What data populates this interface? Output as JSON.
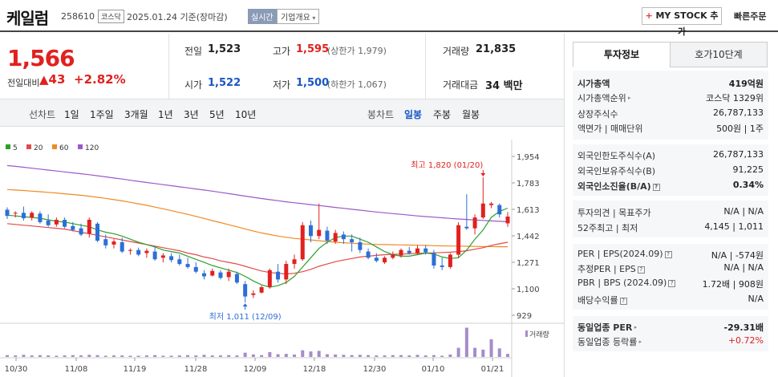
{
  "header": {
    "name": "케일럼",
    "code": "258610",
    "market": "코스닥",
    "date": "2025.01.24",
    "date_suffix": "기준(장마감)",
    "realtime": "실시간",
    "company_overview": "기업개요",
    "mystock": "MY STOCK 추가",
    "quick_order": "빠른주문"
  },
  "price": {
    "current": "1,566",
    "prev_label": "전일대비",
    "change": "▲43",
    "change_pct": "+2.82%"
  },
  "quote": {
    "prev_close_label": "전일",
    "prev_close": "1,523",
    "open_label": "시가",
    "open": "1,522",
    "high_label": "고가",
    "high": "1,595",
    "upper_limit": "(상한가 1,979)",
    "low_label": "저가",
    "low": "1,500",
    "lower_limit": "(하한가 1,067)",
    "volume_label": "거래량",
    "volume": "21,835",
    "amount_label": "거래대금",
    "amount": "34 백만"
  },
  "period_tabs": {
    "line_label": "선차트",
    "line_items": [
      "1일",
      "1주일",
      "3개월",
      "1년",
      "3년",
      "5년",
      "10년"
    ],
    "candle_label": "봉차트",
    "candle_items": [
      "일봉",
      "주봉",
      "월봉"
    ],
    "active_candle": "일봉"
  },
  "chart_data": {
    "type": "candlestick",
    "x_tick_labels": [
      "10/30",
      "11/08",
      "11/19",
      "11/28",
      "12/09",
      "12/18",
      "12/30",
      "01/10",
      "01/21"
    ],
    "y_tick_labels": [
      "1,954",
      "1,783",
      "1,613",
      "1,442",
      "1,271",
      "1,100",
      "929"
    ],
    "ylim": [
      929,
      1954
    ],
    "legend": [
      {
        "name": "5",
        "color": "#2ca02c"
      },
      {
        "name": "20",
        "color": "#e04b4b"
      },
      {
        "name": "60",
        "color": "#f08a24"
      },
      {
        "name": "120",
        "color": "#9b59c9"
      }
    ],
    "annotations": {
      "high": "최고 1,820 (01/20)",
      "low": "최저 1,011 (12/09)"
    },
    "volume_label": "거래량",
    "candles": [
      {
        "o": 1610,
        "h": 1625,
        "l": 1550,
        "c": 1570
      },
      {
        "o": 1585,
        "h": 1600,
        "l": 1560,
        "c": 1590
      },
      {
        "o": 1590,
        "h": 1630,
        "l": 1540,
        "c": 1555
      },
      {
        "o": 1560,
        "h": 1600,
        "l": 1540,
        "c": 1590
      },
      {
        "o": 1585,
        "h": 1600,
        "l": 1520,
        "c": 1530
      },
      {
        "o": 1540,
        "h": 1580,
        "l": 1500,
        "c": 1510
      },
      {
        "o": 1515,
        "h": 1560,
        "l": 1500,
        "c": 1545
      },
      {
        "o": 1545,
        "h": 1560,
        "l": 1490,
        "c": 1500
      },
      {
        "o": 1505,
        "h": 1530,
        "l": 1470,
        "c": 1480
      },
      {
        "o": 1490,
        "h": 1520,
        "l": 1440,
        "c": 1450
      },
      {
        "o": 1455,
        "h": 1560,
        "l": 1430,
        "c": 1545
      },
      {
        "o": 1520,
        "h": 1530,
        "l": 1400,
        "c": 1410
      },
      {
        "o": 1420,
        "h": 1450,
        "l": 1360,
        "c": 1380
      },
      {
        "o": 1385,
        "h": 1420,
        "l": 1360,
        "c": 1405
      },
      {
        "o": 1400,
        "h": 1430,
        "l": 1330,
        "c": 1340
      },
      {
        "o": 1345,
        "h": 1360,
        "l": 1320,
        "c": 1350
      },
      {
        "o": 1350,
        "h": 1365,
        "l": 1310,
        "c": 1320
      },
      {
        "o": 1330,
        "h": 1360,
        "l": 1300,
        "c": 1345
      },
      {
        "o": 1340,
        "h": 1370,
        "l": 1280,
        "c": 1290
      },
      {
        "o": 1300,
        "h": 1330,
        "l": 1270,
        "c": 1315
      },
      {
        "o": 1310,
        "h": 1330,
        "l": 1270,
        "c": 1285
      },
      {
        "o": 1290,
        "h": 1320,
        "l": 1250,
        "c": 1260
      },
      {
        "o": 1260,
        "h": 1300,
        "l": 1230,
        "c": 1240
      },
      {
        "o": 1240,
        "h": 1270,
        "l": 1200,
        "c": 1210
      },
      {
        "o": 1200,
        "h": 1220,
        "l": 1160,
        "c": 1180
      },
      {
        "o": 1185,
        "h": 1230,
        "l": 1180,
        "c": 1215
      },
      {
        "o": 1205,
        "h": 1220,
        "l": 1160,
        "c": 1170
      },
      {
        "o": 1175,
        "h": 1230,
        "l": 1150,
        "c": 1210
      },
      {
        "o": 1195,
        "h": 1210,
        "l": 1130,
        "c": 1140
      },
      {
        "o": 1130,
        "h": 1150,
        "l": 1011,
        "c": 1050
      },
      {
        "o": 1060,
        "h": 1090,
        "l": 1040,
        "c": 1070
      },
      {
        "o": 1075,
        "h": 1120,
        "l": 1070,
        "c": 1110
      },
      {
        "o": 1110,
        "h": 1230,
        "l": 1100,
        "c": 1220
      },
      {
        "o": 1210,
        "h": 1260,
        "l": 1140,
        "c": 1160
      },
      {
        "o": 1160,
        "h": 1280,
        "l": 1130,
        "c": 1260
      },
      {
        "o": 1260,
        "h": 1320,
        "l": 1230,
        "c": 1290
      },
      {
        "o": 1290,
        "h": 1530,
        "l": 1280,
        "c": 1510
      },
      {
        "o": 1510,
        "h": 1540,
        "l": 1400,
        "c": 1440
      },
      {
        "o": 1440,
        "h": 1650,
        "l": 1420,
        "c": 1480
      },
      {
        "o": 1475,
        "h": 1500,
        "l": 1390,
        "c": 1410
      },
      {
        "o": 1405,
        "h": 1480,
        "l": 1390,
        "c": 1460
      },
      {
        "o": 1450,
        "h": 1470,
        "l": 1390,
        "c": 1420
      },
      {
        "o": 1420,
        "h": 1450,
        "l": 1340,
        "c": 1400
      },
      {
        "o": 1400,
        "h": 1430,
        "l": 1330,
        "c": 1350
      },
      {
        "o": 1340,
        "h": 1360,
        "l": 1290,
        "c": 1300
      },
      {
        "o": 1300,
        "h": 1330,
        "l": 1270,
        "c": 1280
      },
      {
        "o": 1270,
        "h": 1310,
        "l": 1260,
        "c": 1300
      },
      {
        "o": 1300,
        "h": 1340,
        "l": 1290,
        "c": 1320
      },
      {
        "o": 1315,
        "h": 1360,
        "l": 1300,
        "c": 1350
      },
      {
        "o": 1345,
        "h": 1370,
        "l": 1320,
        "c": 1330
      },
      {
        "o": 1330,
        "h": 1380,
        "l": 1320,
        "c": 1360
      },
      {
        "o": 1360,
        "h": 1380,
        "l": 1320,
        "c": 1335
      },
      {
        "o": 1330,
        "h": 1350,
        "l": 1230,
        "c": 1250
      },
      {
        "o": 1250,
        "h": 1300,
        "l": 1220,
        "c": 1240
      },
      {
        "o": 1240,
        "h": 1330,
        "l": 1230,
        "c": 1320
      },
      {
        "o": 1320,
        "h": 1530,
        "l": 1300,
        "c": 1510
      },
      {
        "o": 1500,
        "h": 1710,
        "l": 1480,
        "c": 1490
      },
      {
        "o": 1490,
        "h": 1580,
        "l": 1450,
        "c": 1560
      },
      {
        "o": 1560,
        "h": 1820,
        "l": 1550,
        "c": 1650
      },
      {
        "o": 1640,
        "h": 1660,
        "l": 1620,
        "c": 1650
      },
      {
        "o": 1640,
        "h": 1650,
        "l": 1560,
        "c": 1580
      },
      {
        "o": 1522,
        "h": 1595,
        "l": 1500,
        "c": 1566
      }
    ],
    "ma5": [
      1575,
      1570,
      1565,
      1560,
      1555,
      1545,
      1535,
      1530,
      1520,
      1510,
      1500,
      1480,
      1465,
      1455,
      1440,
      1420,
      1400,
      1385,
      1370,
      1350,
      1340,
      1330,
      1310,
      1290,
      1270,
      1250,
      1235,
      1220,
      1205,
      1180,
      1150,
      1125,
      1110,
      1120,
      1140,
      1180,
      1240,
      1300,
      1360,
      1400,
      1430,
      1440,
      1440,
      1420,
      1400,
      1370,
      1340,
      1320,
      1310,
      1310,
      1320,
      1330,
      1325,
      1305,
      1295,
      1300,
      1350,
      1420,
      1480,
      1560,
      1600,
      1620
    ],
    "ma20": [
      1520,
      1515,
      1510,
      1505,
      1500,
      1495,
      1490,
      1485,
      1475,
      1465,
      1455,
      1445,
      1435,
      1425,
      1415,
      1405,
      1395,
      1385,
      1375,
      1365,
      1355,
      1345,
      1330,
      1320,
      1305,
      1295,
      1280,
      1270,
      1260,
      1245,
      1230,
      1215,
      1205,
      1200,
      1195,
      1200,
      1210,
      1225,
      1245,
      1260,
      1275,
      1285,
      1295,
      1305,
      1310,
      1315,
      1320,
      1322,
      1324,
      1326,
      1328,
      1330,
      1332,
      1334,
      1336,
      1340,
      1345,
      1355,
      1365,
      1380,
      1390,
      1400
    ],
    "ma60": [
      1740,
      1737,
      1734,
      1730,
      1726,
      1722,
      1718,
      1713,
      1708,
      1703,
      1697,
      1690,
      1683,
      1675,
      1667,
      1658,
      1648,
      1638,
      1627,
      1616,
      1604,
      1592,
      1580,
      1567,
      1554,
      1540,
      1527,
      1513,
      1500,
      1486,
      1472,
      1460,
      1450,
      1440,
      1432,
      1425,
      1420,
      1415,
      1410,
      1405,
      1400,
      1397,
      1394,
      1390,
      1388,
      1386,
      1385,
      1384,
      1383,
      1382,
      1381,
      1380,
      1378,
      1377,
      1376,
      1375,
      1374,
      1373,
      1372,
      1372,
      1371,
      1371
    ],
    "ma120": [
      1895,
      1890,
      1884,
      1878,
      1872,
      1866,
      1860,
      1854,
      1848,
      1842,
      1836,
      1829,
      1822,
      1815,
      1808,
      1800,
      1793,
      1786,
      1779,
      1772,
      1765,
      1758,
      1751,
      1744,
      1737,
      1730,
      1722,
      1714,
      1706,
      1698,
      1690,
      1682,
      1675,
      1668,
      1661,
      1655,
      1649,
      1643,
      1637,
      1631,
      1625,
      1619,
      1613,
      1607,
      1601,
      1595,
      1590,
      1585,
      1580,
      1575,
      1570,
      1566,
      1562,
      1558,
      1554,
      1550,
      1547,
      1544,
      1541,
      1538,
      1535,
      1532
    ],
    "volumes": [
      6,
      5,
      7,
      5,
      6,
      5,
      4,
      5,
      6,
      5,
      7,
      6,
      4,
      5,
      5,
      4,
      4,
      5,
      6,
      4,
      4,
      5,
      6,
      5,
      7,
      5,
      5,
      6,
      5,
      14,
      8,
      6,
      16,
      9,
      10,
      8,
      22,
      18,
      20,
      9,
      8,
      7,
      6,
      7,
      6,
      5,
      5,
      6,
      6,
      5,
      7,
      5,
      6,
      4,
      8,
      30,
      96,
      30,
      24,
      58,
      28,
      10
    ]
  },
  "right": {
    "tabs": [
      "투자정보",
      "호가10단계"
    ],
    "rows": [
      {
        "k": "시가총액",
        "v": "419억원",
        "bold": true
      },
      {
        "k": "시가총액순위",
        "v": "코스닥 1329위",
        "arrow": true
      },
      {
        "k": "상장주식수",
        "v": "26,787,133"
      },
      {
        "k": "액면가 | 매매단위",
        "v": "500원 | 1주"
      },
      {
        "k": "외국인한도주식수(A)",
        "v": "26,787,133"
      },
      {
        "k": "외국인보유주식수(B)",
        "v": "91,225"
      },
      {
        "k": "외국인소진율(B/A)",
        "v": "0.34%",
        "bold": true,
        "info": true
      },
      {
        "k": "투자의견 | 목표주가",
        "v": "N/A | N/A"
      },
      {
        "k": "52주최고 | 최저",
        "v": "4,145 | 1,011"
      },
      {
        "k": "PER | EPS(2024.09)",
        "v": "N/A | -574원",
        "info": true
      },
      {
        "k": "추정PER | EPS",
        "v": "N/A | N/A",
        "info": true
      },
      {
        "k": "PBR | BPS (2024.09)",
        "v": "1.72배 | 908원",
        "info": true
      },
      {
        "k": "배당수익률",
        "v": "N/A",
        "info": true
      },
      {
        "k": "동일업종 PER",
        "v": "-29.31배",
        "bold": true,
        "arrow": true
      },
      {
        "k": "동일업종 등락률",
        "v": "+0.72%",
        "red": true,
        "arrow": true
      }
    ]
  }
}
